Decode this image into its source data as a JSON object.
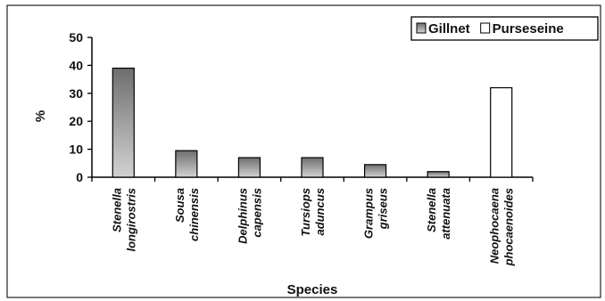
{
  "chart_data": {
    "type": "bar",
    "categories": [
      [
        "Stenella",
        "longirostris"
      ],
      [
        "Sousa",
        "chinensis"
      ],
      [
        "Delphinus",
        "capensis"
      ],
      [
        "Tursiops",
        "aduncus"
      ],
      [
        "Grampus",
        "griseus"
      ],
      [
        "Stenella",
        "attenuata"
      ],
      [
        "Neophocaena",
        "phocaenoides"
      ]
    ],
    "series": [
      {
        "name": "Gillnet",
        "values": [
          39,
          9.5,
          7,
          7,
          4.5,
          2,
          0
        ],
        "color": "#9a9a9a"
      },
      {
        "name": "Purseseine",
        "values": [
          0,
          0,
          0,
          0,
          0,
          0,
          32
        ],
        "color": "#ffffff"
      }
    ],
    "title": "",
    "xlabel": "Species",
    "ylabel": "%",
    "ylim": [
      0,
      50
    ],
    "yticks": [
      0,
      10,
      20,
      30,
      40,
      50
    ],
    "grid": false,
    "legend": "top-right"
  }
}
